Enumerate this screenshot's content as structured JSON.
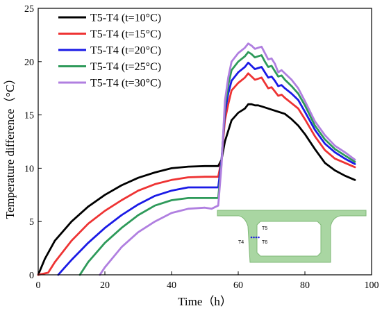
{
  "chart_data": {
    "type": "line",
    "xlabel": "Time（h）",
    "ylabel": "Temperature difference（°C）",
    "xlim": [
      0,
      100
    ],
    "ylim": [
      0,
      25
    ],
    "xticks": [
      "0",
      "20",
      "40",
      "60",
      "80",
      "100"
    ],
    "yticks": [
      "0",
      "5",
      "10",
      "15",
      "20",
      "25"
    ],
    "grid": false,
    "legend_position": "top-left",
    "series": [
      {
        "name": "T5-T4 (t=10°C)",
        "color": "#000000",
        "x": [
          0,
          2,
          5,
          10,
          15,
          20,
          25,
          30,
          35,
          40,
          45,
          50,
          54,
          55,
          56,
          57,
          58,
          60,
          62,
          63,
          64,
          65,
          66,
          68,
          70,
          72,
          74,
          76,
          78,
          80,
          83,
          86,
          89,
          92,
          95
        ],
        "y": [
          0,
          1.5,
          3.2,
          5.0,
          6.4,
          7.5,
          8.4,
          9.1,
          9.6,
          10.0,
          10.15,
          10.2,
          10.2,
          10.8,
          12.5,
          13.5,
          14.5,
          15.2,
          15.6,
          16.0,
          16.0,
          15.9,
          15.9,
          15.7,
          15.5,
          15.3,
          15.1,
          14.6,
          14.0,
          13.2,
          11.8,
          10.5,
          9.8,
          9.3,
          8.9
        ]
      },
      {
        "name": "T5-T4 (t=15°C)",
        "color": "#ee3333",
        "x": [
          0,
          3,
          5,
          10,
          15,
          20,
          25,
          30,
          35,
          40,
          45,
          50,
          54,
          55,
          56,
          57,
          58,
          60,
          62,
          63,
          64,
          65,
          66,
          67,
          68,
          69,
          70,
          71,
          72,
          73,
          74,
          76,
          78,
          80,
          83,
          86,
          89,
          92,
          95
        ],
        "y": [
          -0.3,
          0.2,
          1.2,
          3.2,
          4.8,
          6.0,
          7.0,
          7.9,
          8.5,
          8.9,
          9.15,
          9.2,
          9.2,
          10.8,
          14.5,
          16.0,
          17.3,
          18.0,
          18.5,
          18.9,
          18.6,
          18.3,
          18.4,
          18.5,
          18.0,
          17.5,
          17.6,
          17.2,
          16.8,
          16.9,
          16.6,
          16.1,
          15.6,
          14.6,
          13.0,
          11.7,
          10.9,
          10.5,
          10.1
        ]
      },
      {
        "name": "T5-T4 (t=20°C)",
        "color": "#1a1ae6",
        "x": [
          6,
          8,
          10,
          15,
          20,
          25,
          30,
          35,
          40,
          45,
          50,
          54,
          55,
          56,
          57,
          58,
          60,
          62,
          63,
          64,
          65,
          66,
          67,
          68,
          69,
          70,
          71,
          72,
          73,
          74,
          76,
          78,
          80,
          83,
          86,
          89,
          92,
          95
        ],
        "y": [
          0,
          0.7,
          1.4,
          3.0,
          4.4,
          5.6,
          6.6,
          7.4,
          7.9,
          8.2,
          8.2,
          8.2,
          10.8,
          15.2,
          17.0,
          18.2,
          19.0,
          19.5,
          19.9,
          19.6,
          19.3,
          19.4,
          19.5,
          19.0,
          18.5,
          18.6,
          18.2,
          17.7,
          17.8,
          17.5,
          17.0,
          16.4,
          15.3,
          13.6,
          12.3,
          11.5,
          10.9,
          10.4
        ]
      },
      {
        "name": "T5-T4 (t=25°C)",
        "color": "#2e9a5a",
        "x": [
          12.5,
          15,
          20,
          25,
          30,
          35,
          40,
          45,
          50,
          54,
          55,
          56,
          57,
          58,
          60,
          62,
          63,
          64,
          65,
          66,
          67,
          68,
          69,
          70,
          71,
          72,
          73,
          74,
          76,
          78,
          80,
          83,
          86,
          89,
          92,
          95
        ],
        "y": [
          0,
          1.2,
          3.0,
          4.4,
          5.6,
          6.5,
          7.0,
          7.2,
          7.2,
          7.2,
          10.5,
          15.8,
          17.8,
          19.2,
          20.0,
          20.5,
          20.9,
          20.7,
          20.4,
          20.5,
          20.6,
          20.0,
          19.5,
          19.6,
          19.1,
          18.6,
          18.7,
          18.3,
          17.7,
          17.0,
          15.9,
          14.0,
          12.7,
          11.8,
          11.2,
          10.6
        ]
      },
      {
        "name": "T5-T4 (t=30°C)",
        "color": "#b07fe0",
        "x": [
          18.5,
          20,
          25,
          30,
          35,
          40,
          45,
          50,
          52,
          54,
          55,
          56,
          57,
          58,
          60,
          62,
          63,
          64,
          65,
          66,
          67,
          68,
          69,
          70,
          71,
          72,
          73,
          74,
          76,
          78,
          80,
          83,
          86,
          89,
          92,
          95
        ],
        "y": [
          0,
          0.7,
          2.6,
          4.0,
          5.0,
          5.8,
          6.2,
          6.3,
          6.2,
          6.5,
          10.3,
          16.3,
          18.5,
          20.0,
          20.8,
          21.3,
          21.7,
          21.5,
          21.2,
          21.3,
          21.4,
          20.8,
          20.2,
          20.3,
          19.8,
          19.0,
          19.2,
          18.9,
          18.3,
          17.5,
          16.3,
          14.4,
          13.1,
          12.1,
          11.5,
          10.8
        ]
      }
    ],
    "annotations": [
      "T5",
      "T4",
      "T6"
    ]
  },
  "inset": {
    "fill_color": "#a9d6a2",
    "stroke_color": "#7fb877",
    "marker_color": "#2020dd"
  }
}
